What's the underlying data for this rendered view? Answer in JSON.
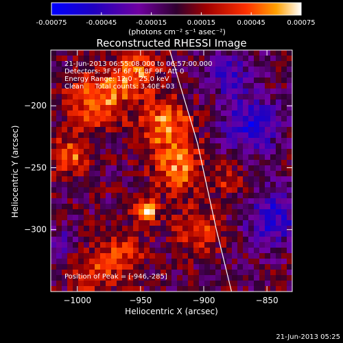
{
  "chart_data": {
    "type": "heatmap",
    "title": "Reconstructed RHESSI Image",
    "colorbar": {
      "range": [
        -0.00075,
        0.00075
      ],
      "tick_labels": [
        "-0.00075",
        "-0.00045",
        "-0.00015",
        "0.00015",
        "0.00045",
        "0.00075"
      ],
      "unit_label": "(photons cm⁻² s⁻¹ asec⁻²)"
    },
    "xlabel": "Heliocentric X (arcsec)",
    "ylabel": "Heliocentric Y (arcsec)",
    "xlim": [
      -1021,
      -830
    ],
    "ylim": [
      -350,
      -155
    ],
    "x_ticks": [
      -1000,
      -950,
      -900,
      -850
    ],
    "x_tick_labels": [
      "−1000",
      "−950",
      "−900",
      "−850"
    ],
    "y_ticks": [
      -200,
      -250,
      -300
    ],
    "y_tick_labels": [
      "−200",
      "−250",
      "−300"
    ],
    "info_lines": [
      "21-Jun-2013 06:55:08.000 to 06:57:00.000",
      "Detectors: 3F 5F 6F 7F 8F 9F, Att 0",
      "Energy Range: 12.0 - 25.0 keV",
      "Clean     Total counts: 3.40E+03"
    ],
    "peak": {
      "x": -946,
      "y": -285,
      "label": "Position of Peak = [-946,-285]"
    },
    "limb": [
      [
        -927,
        -155
      ],
      [
        -905,
        -230
      ],
      [
        -890,
        -300
      ],
      [
        -878,
        -350
      ]
    ],
    "hotspots": [
      {
        "x": -946,
        "y": -285,
        "v": 0.00075,
        "r": 9
      },
      {
        "x": -985,
        "y": -195,
        "v": 0.00055,
        "r": 22
      },
      {
        "x": -955,
        "y": -175,
        "v": 0.0005,
        "r": 18
      },
      {
        "x": -930,
        "y": -215,
        "v": 0.00055,
        "r": 20
      },
      {
        "x": -920,
        "y": -250,
        "v": 0.0005,
        "r": 20
      },
      {
        "x": -1005,
        "y": -240,
        "v": 0.00045,
        "r": 16
      },
      {
        "x": -965,
        "y": -320,
        "v": 0.0004,
        "r": 18
      },
      {
        "x": -905,
        "y": -300,
        "v": 0.0004,
        "r": 18
      },
      {
        "x": -990,
        "y": -335,
        "v": 0.00035,
        "r": 16
      },
      {
        "x": -880,
        "y": -260,
        "v": 0.0003,
        "r": 12
      },
      {
        "x": -862,
        "y": -215,
        "v": -0.00055,
        "r": 22
      },
      {
        "x": -845,
        "y": -290,
        "v": -0.0005,
        "r": 22
      },
      {
        "x": -880,
        "y": -175,
        "v": -0.00045,
        "r": 16
      },
      {
        "x": -1012,
        "y": -310,
        "v": -0.0003,
        "r": 12
      }
    ],
    "timestamp": "21-Jun-2013 05:25"
  }
}
